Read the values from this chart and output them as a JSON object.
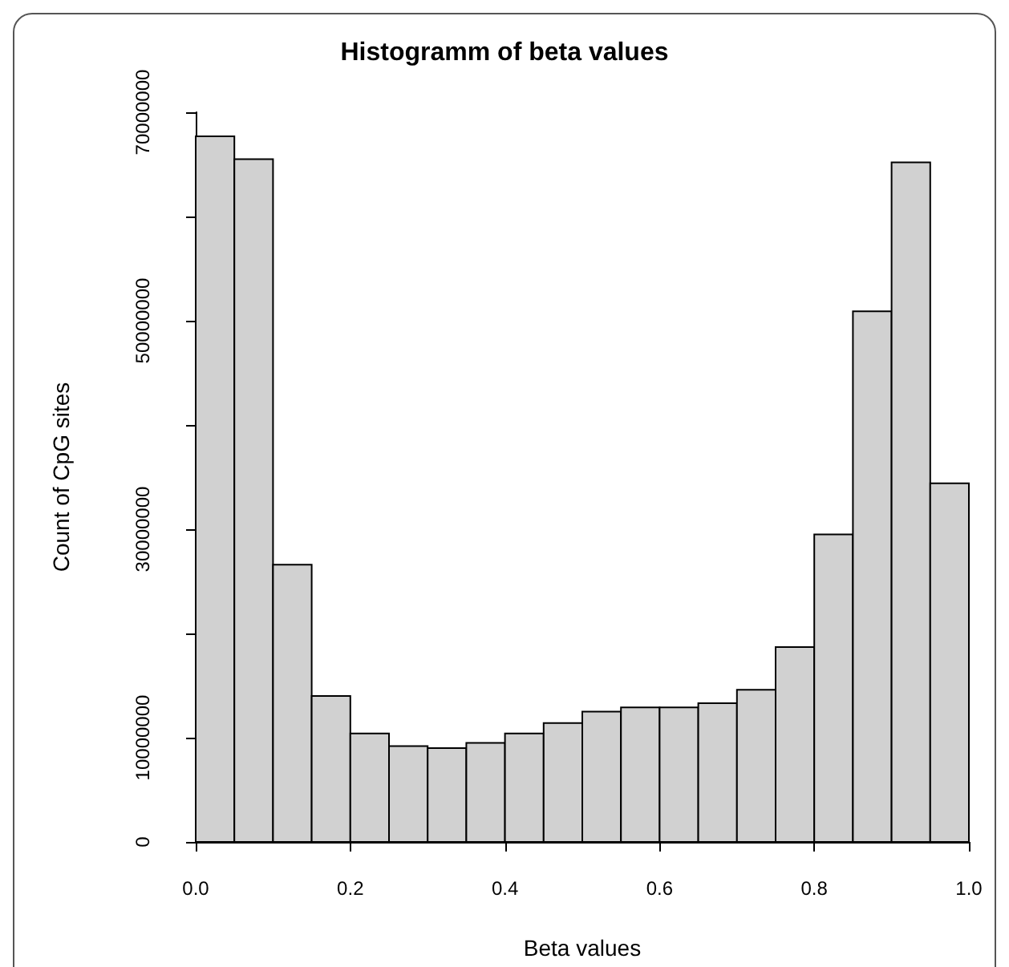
{
  "chart_data": {
    "type": "histogram",
    "title": "Histogramm of beta values",
    "xlabel": "Beta values",
    "ylabel": "Count of CpG sites",
    "color": "#d1d1d1",
    "bins": [
      0,
      0.05,
      0.1,
      0.15,
      0.2,
      0.25,
      0.3,
      0.35,
      0.4,
      0.45,
      0.5,
      0.55,
      0.6,
      0.65,
      0.7,
      0.75,
      0.8,
      0.85,
      0.9,
      0.95,
      1.0
    ],
    "values": [
      67700000,
      65500000,
      26600000,
      14000000,
      10400000,
      9200000,
      9000000,
      9500000,
      10400000,
      11400000,
      12500000,
      12900000,
      12900000,
      13300000,
      14600000,
      18700000,
      29500000,
      50900000,
      65200000,
      34400000
    ],
    "xlim": [
      0,
      1
    ],
    "xticks": [
      {
        "value": 0,
        "label": "0.0"
      },
      {
        "value": 0.2,
        "label": "0.2"
      },
      {
        "value": 0.4,
        "label": "0.4"
      },
      {
        "value": 0.6,
        "label": "0.6"
      },
      {
        "value": 0.8,
        "label": "0.8"
      },
      {
        "value": 1,
        "label": "1.0"
      }
    ],
    "ylim": [
      0,
      70000000
    ],
    "yticks": [
      0,
      10000000,
      {
        "value": 20000000,
        "label": null
      },
      30000000,
      {
        "value": 40000000,
        "label": null
      },
      50000000,
      {
        "value": 60000000,
        "label": null
      },
      70000000
    ],
    "grid": false
  }
}
